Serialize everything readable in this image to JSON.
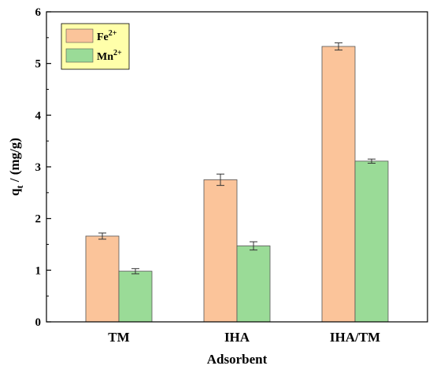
{
  "chart_data": {
    "type": "bar",
    "categories": [
      "TM",
      "IHA",
      "IHA/TM"
    ],
    "series": [
      {
        "name": "Fe",
        "superscript": "2+",
        "color": "#FBC49A",
        "values": [
          1.66,
          2.75,
          5.33
        ],
        "errors": [
          0.06,
          0.11,
          0.07
        ]
      },
      {
        "name": "Mn",
        "superscript": "2+",
        "color": "#9ADB97",
        "values": [
          0.98,
          1.47,
          3.11
        ],
        "errors": [
          0.05,
          0.08,
          0.04
        ]
      }
    ],
    "xlabel": "Adsorbent",
    "ylabel": {
      "main": "q",
      "subscript": "t",
      "rest": " / (mg/g)"
    },
    "ylim": [
      0,
      6
    ],
    "yticks": [
      "0",
      "1",
      "2",
      "3",
      "4",
      "5",
      "6"
    ],
    "legend_position": "top-left",
    "legend_background": "#FFFFAA",
    "grid": false
  }
}
